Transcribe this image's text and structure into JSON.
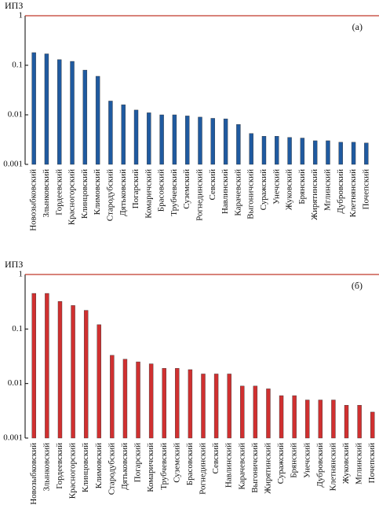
{
  "chart_data": [
    {
      "type": "bar",
      "log_scale": true,
      "ylabel": "ИПЗ",
      "panel_label": "(а)",
      "color": "#1f5aa0",
      "reference_line": {
        "value": 1,
        "color": "#c0392b"
      },
      "categories": [
        "Новозыбковский",
        "Злынковский",
        "Гордеевский",
        "Красногорский",
        "Клинцовский",
        "Климовский",
        "Стародубский",
        "Дятьковский",
        "Погарский",
        "Комаричский",
        "Брасовский",
        "Трубчевский",
        "Суземский",
        "Рогнединский",
        "Севский",
        "Навлинский",
        "Карачевский",
        "Выгоничский",
        "Суражский",
        "Унечский",
        "Жуковский",
        "Брянский",
        "Жирятинский",
        "Мглинский",
        "Дубровский",
        "Клетнянский",
        "Почепский"
      ],
      "values": [
        0.18,
        0.17,
        0.13,
        0.12,
        0.08,
        0.06,
        0.019,
        0.016,
        0.0125,
        0.011,
        0.01,
        0.01,
        0.0095,
        0.009,
        0.0085,
        0.0083,
        0.0064,
        0.0042,
        0.0037,
        0.0037,
        0.0035,
        0.0034,
        0.003,
        0.003,
        0.0028,
        0.0028,
        0.0027
      ],
      "ylim": [
        0.001,
        1
      ],
      "yticks": [
        0.001,
        0.01,
        0.1,
        1
      ]
    },
    {
      "type": "bar",
      "log_scale": true,
      "ylabel": "ИПЗ",
      "panel_label": "(б)",
      "color": "#d03030",
      "reference_line": {
        "value": 1,
        "color": "#c0392b"
      },
      "categories": [
        "Новозыбковский",
        "Злынковский",
        "Гордеевский",
        "Красногорский",
        "Клинцовский",
        "Климовский",
        "Стародубский",
        "Дятьковский",
        "Погарский",
        "Комаричский",
        "Трубчевский",
        "Суземский",
        "Брасовский",
        "Рогнединский",
        "Севский",
        "Навлинский",
        "Карачевский",
        "Выгоничский",
        "Жирятинский",
        "Суражский",
        "Брянский",
        "Унечский",
        "Дубровский",
        "Клетнянский",
        "Жуковский",
        "Мглинский",
        "Почепский"
      ],
      "values": [
        0.45,
        0.45,
        0.32,
        0.27,
        0.22,
        0.12,
        0.033,
        0.028,
        0.025,
        0.023,
        0.019,
        0.019,
        0.018,
        0.015,
        0.015,
        0.015,
        0.009,
        0.009,
        0.008,
        0.006,
        0.006,
        0.005,
        0.005,
        0.005,
        0.004,
        0.004,
        0.003
      ],
      "ylim": [
        0.001,
        1
      ],
      "yticks": [
        0.001,
        0.01,
        0.1,
        1
      ]
    }
  ]
}
